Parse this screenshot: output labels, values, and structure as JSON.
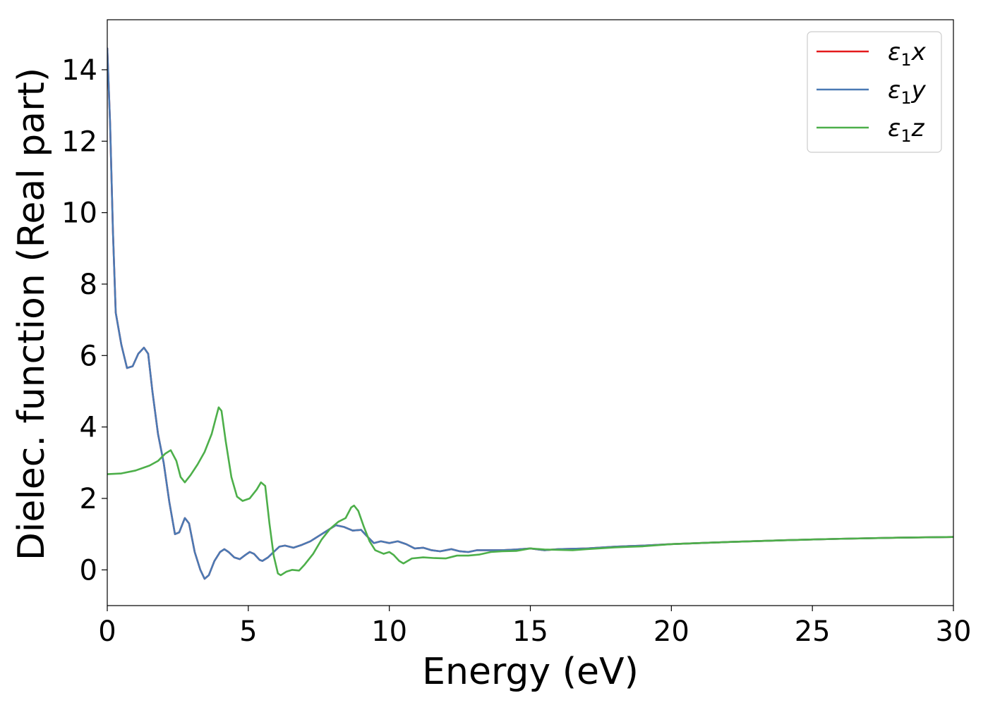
{
  "chart_data": {
    "type": "line",
    "title": "",
    "xlabel": "Energy (eV)",
    "ylabel": "Dielec. function (Real part)",
    "xlim": [
      0,
      30
    ],
    "ylim": [
      -1,
      15.4
    ],
    "xticks": [
      0,
      5,
      10,
      15,
      20,
      25,
      30
    ],
    "yticks": [
      0,
      2,
      4,
      6,
      8,
      10,
      12,
      14
    ],
    "grid": false,
    "legend_position": "top-right",
    "series": [
      {
        "name": "ε₁x",
        "legend_base": "ε",
        "legend_sub": "1",
        "legend_suffix": "x",
        "color": "#e41a1c",
        "points": [
          [
            0,
            14.6
          ],
          [
            0.1,
            12.5
          ],
          [
            0.2,
            9.5
          ],
          [
            0.3,
            7.2
          ],
          [
            0.5,
            6.3
          ],
          [
            0.7,
            5.65
          ],
          [
            0.9,
            5.7
          ],
          [
            1.1,
            6.05
          ],
          [
            1.3,
            6.22
          ],
          [
            1.45,
            6.05
          ],
          [
            1.6,
            5.0
          ],
          [
            1.8,
            3.8
          ],
          [
            2.0,
            3.0
          ],
          [
            2.2,
            1.9
          ],
          [
            2.4,
            1.0
          ],
          [
            2.55,
            1.05
          ],
          [
            2.75,
            1.45
          ],
          [
            2.9,
            1.3
          ],
          [
            3.1,
            0.5
          ],
          [
            3.3,
            0.0
          ],
          [
            3.45,
            -0.25
          ],
          [
            3.6,
            -0.15
          ],
          [
            3.8,
            0.25
          ],
          [
            4.0,
            0.5
          ],
          [
            4.15,
            0.58
          ],
          [
            4.3,
            0.5
          ],
          [
            4.5,
            0.35
          ],
          [
            4.7,
            0.3
          ],
          [
            4.9,
            0.42
          ],
          [
            5.05,
            0.5
          ],
          [
            5.2,
            0.45
          ],
          [
            5.4,
            0.28
          ],
          [
            5.5,
            0.25
          ],
          [
            5.7,
            0.35
          ],
          [
            5.9,
            0.5
          ],
          [
            6.1,
            0.65
          ],
          [
            6.3,
            0.68
          ],
          [
            6.6,
            0.62
          ],
          [
            6.9,
            0.7
          ],
          [
            7.2,
            0.8
          ],
          [
            7.5,
            0.95
          ],
          [
            7.8,
            1.1
          ],
          [
            8.1,
            1.25
          ],
          [
            8.4,
            1.2
          ],
          [
            8.7,
            1.1
          ],
          [
            9.0,
            1.12
          ],
          [
            9.2,
            0.95
          ],
          [
            9.45,
            0.75
          ],
          [
            9.7,
            0.8
          ],
          [
            10.0,
            0.75
          ],
          [
            10.3,
            0.8
          ],
          [
            10.6,
            0.72
          ],
          [
            10.9,
            0.6
          ],
          [
            11.2,
            0.62
          ],
          [
            11.5,
            0.55
          ],
          [
            11.8,
            0.52
          ],
          [
            12.2,
            0.58
          ],
          [
            12.5,
            0.52
          ],
          [
            12.8,
            0.5
          ],
          [
            13.1,
            0.55
          ],
          [
            13.5,
            0.55
          ],
          [
            14.0,
            0.55
          ],
          [
            14.5,
            0.57
          ],
          [
            15.0,
            0.6
          ],
          [
            15.5,
            0.55
          ],
          [
            16.0,
            0.58
          ],
          [
            17.0,
            0.6
          ],
          [
            18.0,
            0.65
          ],
          [
            19.0,
            0.68
          ],
          [
            20.0,
            0.72
          ],
          [
            22.0,
            0.78
          ],
          [
            24.0,
            0.83
          ],
          [
            26.0,
            0.87
          ],
          [
            28.0,
            0.9
          ],
          [
            30.0,
            0.92
          ]
        ]
      },
      {
        "name": "ε₁y",
        "legend_base": "ε",
        "legend_sub": "1",
        "legend_suffix": "y",
        "color": "#4a7ab4",
        "points": [
          [
            0,
            14.6
          ],
          [
            0.1,
            12.5
          ],
          [
            0.2,
            9.5
          ],
          [
            0.3,
            7.2
          ],
          [
            0.5,
            6.3
          ],
          [
            0.7,
            5.65
          ],
          [
            0.9,
            5.7
          ],
          [
            1.1,
            6.05
          ],
          [
            1.3,
            6.22
          ],
          [
            1.45,
            6.05
          ],
          [
            1.6,
            5.0
          ],
          [
            1.8,
            3.8
          ],
          [
            2.0,
            3.0
          ],
          [
            2.2,
            1.9
          ],
          [
            2.4,
            1.0
          ],
          [
            2.55,
            1.05
          ],
          [
            2.75,
            1.45
          ],
          [
            2.9,
            1.3
          ],
          [
            3.1,
            0.5
          ],
          [
            3.3,
            0.0
          ],
          [
            3.45,
            -0.25
          ],
          [
            3.6,
            -0.15
          ],
          [
            3.8,
            0.25
          ],
          [
            4.0,
            0.5
          ],
          [
            4.15,
            0.58
          ],
          [
            4.3,
            0.5
          ],
          [
            4.5,
            0.35
          ],
          [
            4.7,
            0.3
          ],
          [
            4.9,
            0.42
          ],
          [
            5.05,
            0.5
          ],
          [
            5.2,
            0.45
          ],
          [
            5.4,
            0.28
          ],
          [
            5.5,
            0.25
          ],
          [
            5.7,
            0.35
          ],
          [
            5.9,
            0.5
          ],
          [
            6.1,
            0.65
          ],
          [
            6.3,
            0.68
          ],
          [
            6.6,
            0.62
          ],
          [
            6.9,
            0.7
          ],
          [
            7.2,
            0.8
          ],
          [
            7.5,
            0.95
          ],
          [
            7.8,
            1.1
          ],
          [
            8.1,
            1.25
          ],
          [
            8.4,
            1.2
          ],
          [
            8.7,
            1.1
          ],
          [
            9.0,
            1.12
          ],
          [
            9.2,
            0.95
          ],
          [
            9.45,
            0.75
          ],
          [
            9.7,
            0.8
          ],
          [
            10.0,
            0.75
          ],
          [
            10.3,
            0.8
          ],
          [
            10.6,
            0.72
          ],
          [
            10.9,
            0.6
          ],
          [
            11.2,
            0.62
          ],
          [
            11.5,
            0.55
          ],
          [
            11.8,
            0.52
          ],
          [
            12.2,
            0.58
          ],
          [
            12.5,
            0.52
          ],
          [
            12.8,
            0.5
          ],
          [
            13.1,
            0.55
          ],
          [
            13.5,
            0.55
          ],
          [
            14.0,
            0.55
          ],
          [
            14.5,
            0.57
          ],
          [
            15.0,
            0.6
          ],
          [
            15.5,
            0.55
          ],
          [
            16.0,
            0.58
          ],
          [
            17.0,
            0.6
          ],
          [
            18.0,
            0.65
          ],
          [
            19.0,
            0.68
          ],
          [
            20.0,
            0.72
          ],
          [
            22.0,
            0.78
          ],
          [
            24.0,
            0.83
          ],
          [
            26.0,
            0.87
          ],
          [
            28.0,
            0.9
          ],
          [
            30.0,
            0.92
          ]
        ]
      },
      {
        "name": "ε₁z",
        "legend_base": "ε",
        "legend_sub": "1",
        "legend_suffix": "z",
        "color": "#4daf4a",
        "points": [
          [
            0,
            2.68
          ],
          [
            0.5,
            2.7
          ],
          [
            1.0,
            2.78
          ],
          [
            1.5,
            2.92
          ],
          [
            1.8,
            3.05
          ],
          [
            2.05,
            3.25
          ],
          [
            2.25,
            3.35
          ],
          [
            2.45,
            3.05
          ],
          [
            2.6,
            2.6
          ],
          [
            2.75,
            2.45
          ],
          [
            2.95,
            2.65
          ],
          [
            3.2,
            2.95
          ],
          [
            3.45,
            3.3
          ],
          [
            3.7,
            3.8
          ],
          [
            3.85,
            4.25
          ],
          [
            3.95,
            4.55
          ],
          [
            4.05,
            4.45
          ],
          [
            4.2,
            3.6
          ],
          [
            4.4,
            2.6
          ],
          [
            4.6,
            2.05
          ],
          [
            4.8,
            1.93
          ],
          [
            5.05,
            2.0
          ],
          [
            5.3,
            2.25
          ],
          [
            5.45,
            2.45
          ],
          [
            5.6,
            2.35
          ],
          [
            5.75,
            1.3
          ],
          [
            5.9,
            0.4
          ],
          [
            6.05,
            -0.1
          ],
          [
            6.15,
            -0.15
          ],
          [
            6.35,
            -0.05
          ],
          [
            6.55,
            0.0
          ],
          [
            6.8,
            -0.02
          ],
          [
            7.0,
            0.15
          ],
          [
            7.3,
            0.45
          ],
          [
            7.6,
            0.85
          ],
          [
            7.9,
            1.15
          ],
          [
            8.2,
            1.35
          ],
          [
            8.45,
            1.45
          ],
          [
            8.65,
            1.75
          ],
          [
            8.75,
            1.8
          ],
          [
            8.9,
            1.65
          ],
          [
            9.1,
            1.2
          ],
          [
            9.3,
            0.8
          ],
          [
            9.5,
            0.55
          ],
          [
            9.8,
            0.45
          ],
          [
            10.0,
            0.5
          ],
          [
            10.15,
            0.42
          ],
          [
            10.35,
            0.25
          ],
          [
            10.5,
            0.18
          ],
          [
            10.8,
            0.32
          ],
          [
            11.2,
            0.35
          ],
          [
            11.6,
            0.33
          ],
          [
            12.0,
            0.32
          ],
          [
            12.4,
            0.4
          ],
          [
            12.8,
            0.4
          ],
          [
            13.2,
            0.43
          ],
          [
            13.6,
            0.5
          ],
          [
            14.0,
            0.52
          ],
          [
            14.5,
            0.53
          ],
          [
            15.0,
            0.6
          ],
          [
            15.5,
            0.57
          ],
          [
            16.0,
            0.56
          ],
          [
            16.5,
            0.55
          ],
          [
            17.0,
            0.58
          ],
          [
            18.0,
            0.63
          ],
          [
            19.0,
            0.66
          ],
          [
            20.0,
            0.72
          ],
          [
            22.0,
            0.78
          ],
          [
            24.0,
            0.83
          ],
          [
            26.0,
            0.87
          ],
          [
            28.0,
            0.9
          ],
          [
            30.0,
            0.92
          ]
        ]
      }
    ]
  }
}
